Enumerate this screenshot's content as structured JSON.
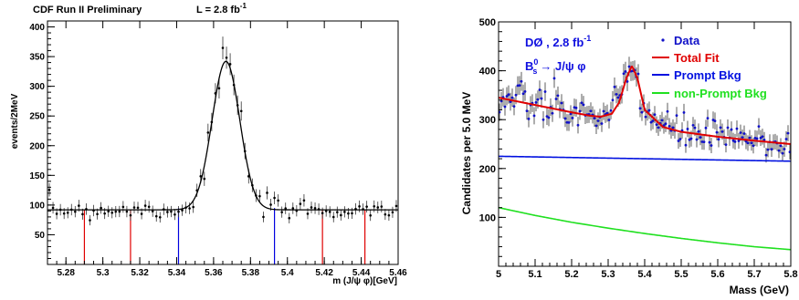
{
  "chart_data": [
    {
      "type": "scatter",
      "title": "CDF Run II Preliminary",
      "lumi": "L = 2.8 fb",
      "lumi_exp": "-1",
      "xlabel": "m (J/ψ φ)[GeV]",
      "ylabel": "events/2MeV",
      "xlim": [
        5.27,
        5.46
      ],
      "ylim": [
        0,
        410
      ],
      "xticks": [
        "5.28",
        "5.3",
        "5.32",
        "5.34",
        "5.36",
        "5.38",
        "5.4",
        "5.42",
        "5.44",
        "5.46"
      ],
      "yticks": [
        "50",
        "100",
        "150",
        "200",
        "250",
        "300",
        "350",
        "400"
      ],
      "fit": {
        "baseline": 92,
        "peak_height": 250,
        "mean": 5.3667,
        "sigma": 0.0075
      },
      "red_lines": [
        5.29,
        5.315,
        5.419,
        5.442
      ],
      "blue_lines": [
        5.341,
        5.393
      ],
      "colors": {
        "data": "#000000",
        "fit": "#000000",
        "red": "#e00000",
        "blue": "#0000e0"
      }
    },
    {
      "type": "scatter",
      "xlabel": "Mass  (GeV)",
      "ylabel": "Candidates per 5.0 MeV",
      "xlim": [
        5.0,
        5.8
      ],
      "ylim": [
        0,
        500
      ],
      "xticks": [
        "5",
        "5.1",
        "5.2",
        "5.3",
        "5.4",
        "5.5",
        "5.6",
        "5.7",
        "5.8"
      ],
      "yticks": [
        "100",
        "200",
        "300",
        "400",
        "500"
      ],
      "annotation": {
        "experiment": "DØ , 2.8 fb",
        "exp_sup": "-1",
        "decay_base": "B",
        "decay_sup": "0",
        "decay_sub": "s",
        "decay_rest": "→ J/ψ φ"
      },
      "legend": [
        "Data",
        "Total Fit",
        "Prompt Bkg",
        "non-Prompt Bkg"
      ],
      "legend_position": "top-right",
      "prompt_bkg": {
        "x": [
          5.0,
          5.8
        ],
        "y": [
          225,
          215
        ]
      },
      "nonprompt_bkg": {
        "x": [
          5.0,
          5.1,
          5.2,
          5.3,
          5.4,
          5.5,
          5.6,
          5.7,
          5.8
        ],
        "y": [
          120,
          104,
          90,
          78,
          67,
          57,
          48,
          40,
          34
        ]
      },
      "total_fit": {
        "x": [
          5.0,
          5.1,
          5.2,
          5.25,
          5.28,
          5.31,
          5.33,
          5.35,
          5.365,
          5.38,
          5.4,
          5.45,
          5.5,
          5.6,
          5.7,
          5.8
        ],
        "y": [
          345,
          330,
          315,
          308,
          306,
          312,
          335,
          385,
          410,
          385,
          320,
          285,
          275,
          265,
          257,
          250
        ]
      },
      "colors": {
        "data": "#1010c8",
        "total_fit": "#e00000",
        "prompt_bkg": "#0010e0",
        "nonprompt_bkg": "#20e020",
        "annotation": "#1010e0"
      }
    }
  ]
}
